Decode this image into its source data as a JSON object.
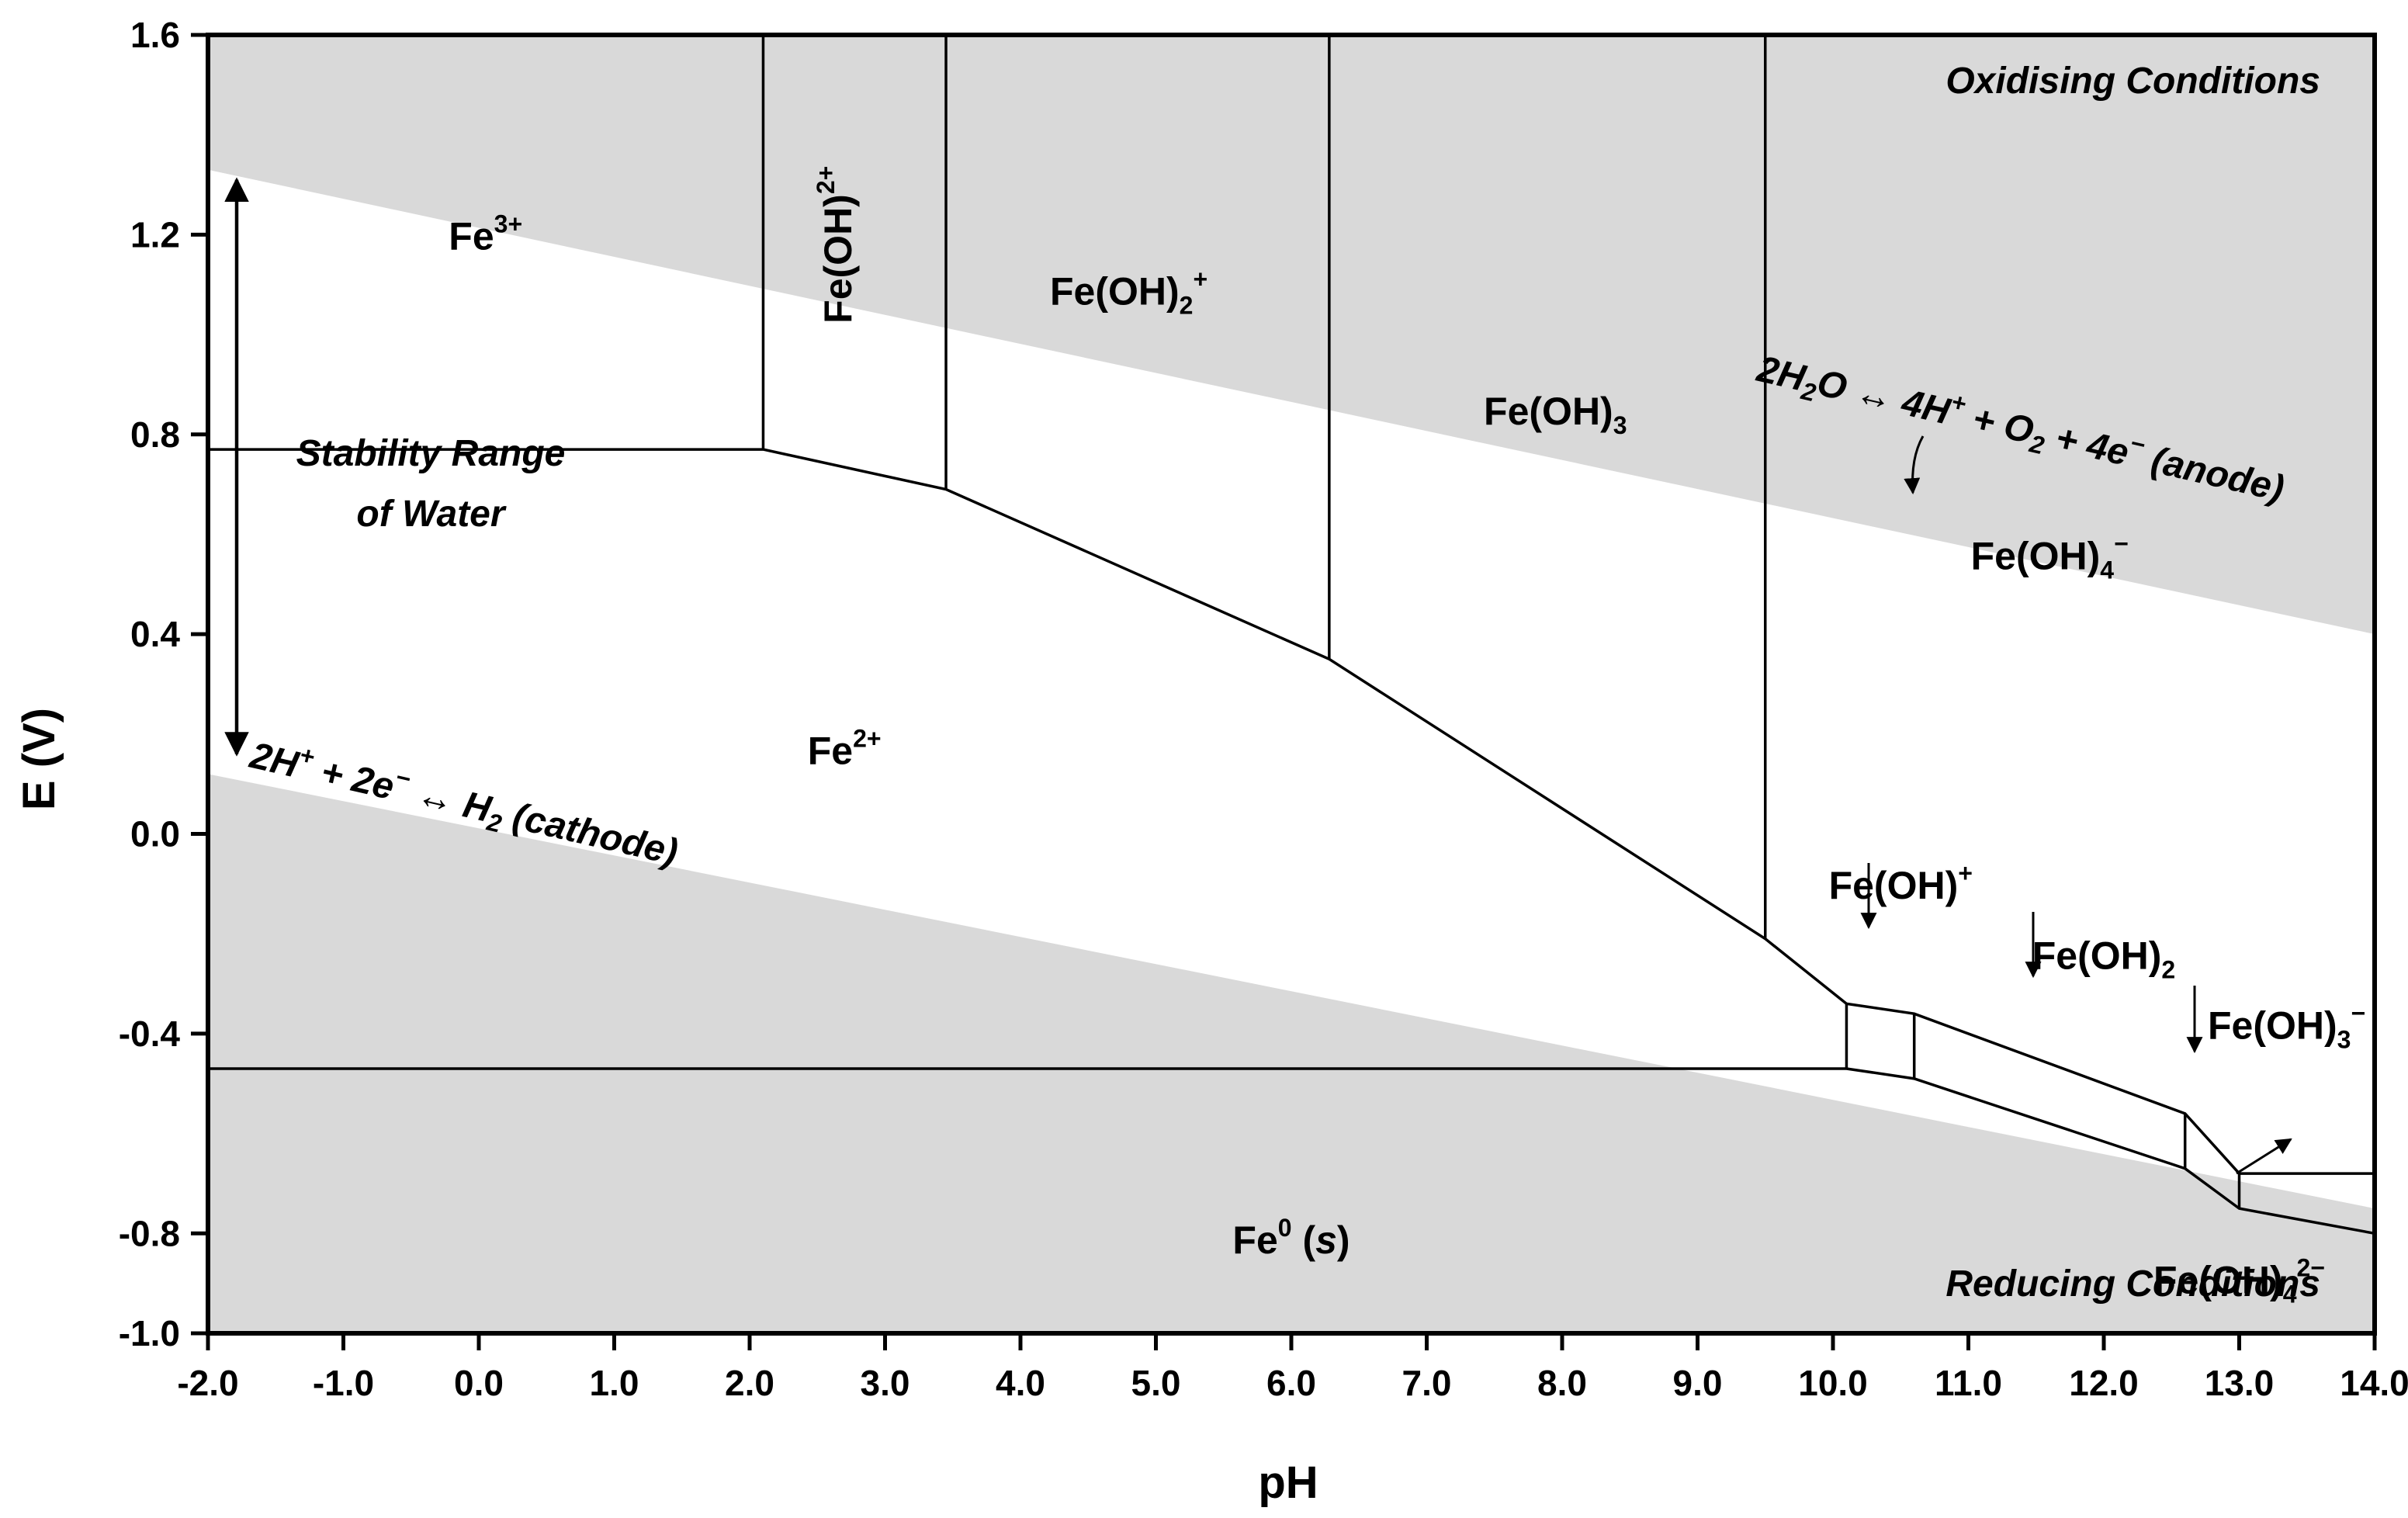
{
  "chart_data": {
    "type": "area",
    "xlabel": "pH",
    "ylabel": "E (V)",
    "xlim": [
      -2.0,
      14.0
    ],
    "ylim": [
      -1.0,
      1.6
    ],
    "xticks": [
      "-2.0",
      "-1.0",
      "0.0",
      "1.0",
      "2.0",
      "3.0",
      "4.0",
      "5.0",
      "6.0",
      "7.0",
      "8.0",
      "9.0",
      "10.0",
      "11.0",
      "12.0",
      "13.0",
      "14.0"
    ],
    "yticks": [
      "-1.0",
      "-0.8",
      "-0.4",
      "0.0",
      "0.4",
      "0.8",
      "1.2",
      "1.6"
    ],
    "grid": false,
    "colors": {
      "shade": "#d9d9d9",
      "line": "#000000",
      "background": "#ffffff"
    },
    "water_lines": {
      "upper": {
        "x": [
          -2.0,
          14.0
        ],
        "y": [
          1.33,
          0.4
        ]
      },
      "lower": {
        "x": [
          -2.0,
          14.0
        ],
        "y": [
          0.12,
          -0.75
        ]
      }
    },
    "boundaries": [
      {
        "x": [
          -2.0,
          2.1
        ],
        "y": [
          0.77,
          0.77
        ]
      },
      {
        "x": [
          2.1,
          2.1
        ],
        "y": [
          0.77,
          1.6
        ]
      },
      {
        "x": [
          3.45,
          3.45
        ],
        "y": [
          0.69,
          1.6
        ]
      },
      {
        "x": [
          6.28,
          6.28
        ],
        "y": [
          0.35,
          1.6
        ]
      },
      {
        "x": [
          9.5,
          9.5
        ],
        "y": [
          -0.21,
          1.6
        ]
      },
      {
        "x": [
          2.1,
          3.45,
          6.28,
          9.5,
          10.1,
          10.6,
          12.6,
          13.0,
          14.0
        ],
        "y": [
          0.77,
          0.69,
          0.35,
          -0.21,
          -0.34,
          -0.36,
          -0.56,
          -0.68,
          -0.68
        ]
      },
      {
        "x": [
          -2.0,
          10.1,
          10.6,
          12.6,
          13.0,
          14.0
        ],
        "y": [
          -0.47,
          -0.47,
          -0.49,
          -0.67,
          -0.75,
          -0.8
        ]
      },
      {
        "x": [
          10.1,
          10.1
        ],
        "y": [
          -0.34,
          -0.47
        ]
      },
      {
        "x": [
          10.6,
          10.6
        ],
        "y": [
          -0.36,
          -0.49
        ]
      },
      {
        "x": [
          12.6,
          12.6
        ],
        "y": [
          -0.56,
          -0.67
        ]
      },
      {
        "x": [
          13.0,
          13.0
        ],
        "y": [
          -0.68,
          -0.75
        ]
      }
    ],
    "species_labels": [
      {
        "base": "Fe",
        "sup": "3+",
        "x": 0.05,
        "y": 1.17
      },
      {
        "base": "Fe(OH)",
        "sup": "2+",
        "x": 2.75,
        "y": 1.18,
        "rotated": true
      },
      {
        "base": "Fe(OH)",
        "sub": "2",
        "sup": "+",
        "x": 4.8,
        "y": 1.06
      },
      {
        "base": "Fe(OH)",
        "sub": "3",
        "x": 7.95,
        "y": 0.82
      },
      {
        "base": "Fe(OH)",
        "sub": "4",
        "sup": "−",
        "x": 11.6,
        "y": 0.53
      },
      {
        "base": "Fe",
        "sup": "2+",
        "x": 2.7,
        "y": 0.14
      },
      {
        "base": "Fe(OH)",
        "sup": "+",
        "x": 10.5,
        "y": -0.13
      },
      {
        "base": "Fe(OH)",
        "sub": "2",
        "x": 12.0,
        "y": -0.27
      },
      {
        "base": "Fe(OH)",
        "sub": "3",
        "sup": "−",
        "x": 13.35,
        "y": -0.41
      },
      {
        "base": "Fe(OH)",
        "sub": "4",
        "sup": "2−",
        "x": 13.0,
        "y": -0.92
      },
      {
        "base": "Fe",
        "sup": "0",
        "tail": " (s)",
        "x": 6.0,
        "y": -0.84
      }
    ],
    "annotations": {
      "oxidising": "Oxidising Conditions",
      "reducing": "Reducing Conditions",
      "stability_line1": "Stability Range",
      "stability_line2": "of Water",
      "anode": [
        "2H",
        "2",
        "O ↔ 4H",
        "+",
        " + O",
        "2",
        " + 4e",
        "−",
        " (anode)"
      ],
      "cathode": [
        "2H",
        "+",
        " + 2e",
        "−",
        " ↔ H",
        "2",
        " (cathode)"
      ]
    }
  }
}
